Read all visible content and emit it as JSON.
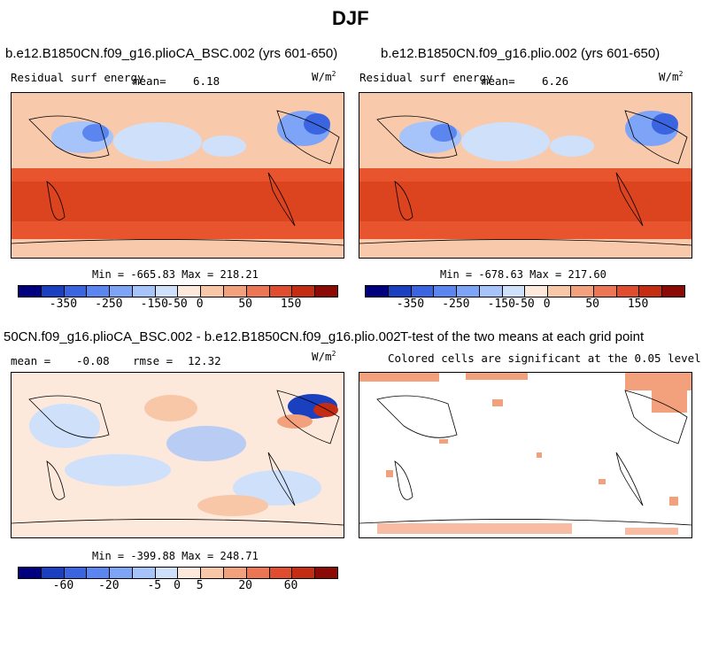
{
  "main_title": "DJF",
  "panels": [
    {
      "title": "b.e12.B1850CN.f09_g16.plioCA_BSC.002 (yrs 601-650)",
      "left_label": "Residual surf energy",
      "stat_label": "mean=",
      "stat_value": "6.18",
      "units": "W/m",
      "units_exp": "2",
      "minmax": "Min = -665.83 Max = 218.21"
    },
    {
      "title": "b.e12.B1850CN.f09_g16.plio.002 (yrs 601-650)",
      "left_label": "Residual surf energy",
      "stat_label": "mean=",
      "stat_value": "6.26",
      "units": "W/m",
      "units_exp": "2",
      "minmax": "Min = -678.63 Max = 217.60"
    },
    {
      "title": "50CN.f09_g16.plioCA_BSC.002 - b.e12.B1850CN.f09_g16.plio.002",
      "stat_label": "mean =",
      "stat_value": "-0.08",
      "rmse_label": "rmse =",
      "rmse_value": "12.32",
      "units": "W/m",
      "units_exp": "2",
      "minmax": "Min = -399.88 Max = 248.71"
    },
    {
      "title": "T-test of the two means at each grid point",
      "subtitle": "Colored cells are significant at the 0.05 level"
    }
  ],
  "chart_data": [
    {
      "type": "heatmap",
      "title": "b.e12.B1850CN.f09_g16.plioCA_BSC.002 (yrs 601-650)",
      "variable": "Residual surf energy",
      "units": "W/m2",
      "mean": 6.18,
      "min": -665.83,
      "max": 218.21,
      "colorbar_ticks": [
        "-350",
        "-250",
        "-150",
        "-50",
        "0",
        "50",
        "150"
      ]
    },
    {
      "type": "heatmap",
      "title": "b.e12.B1850CN.f09_g16.plio.002 (yrs 601-650)",
      "variable": "Residual surf energy",
      "units": "W/m2",
      "mean": 6.26,
      "min": -678.63,
      "max": 217.6,
      "colorbar_ticks": [
        "-350",
        "-250",
        "-150",
        "-50",
        "0",
        "50",
        "150"
      ]
    },
    {
      "type": "heatmap",
      "title": "50CN.f09_g16.plioCA_BSC.002 - b.e12.B1850CN.f09_g16.plio.002",
      "units": "W/m2",
      "mean": -0.08,
      "rmse": 12.32,
      "min": -399.88,
      "max": 248.71,
      "colorbar_ticks": [
        "-60",
        "-20",
        "-5",
        "0",
        "5",
        "20",
        "60"
      ]
    },
    {
      "type": "heatmap",
      "title": "T-test of the two means at each grid point",
      "note": "Colored cells are significant at the 0.05 level"
    }
  ],
  "colorbar_top": {
    "ticks": [
      "-350",
      "-250",
      "-150",
      "-50",
      "0",
      "50",
      "150"
    ],
    "colors": [
      "#00007f",
      "#1a3fbf",
      "#3a64e0",
      "#5b86f0",
      "#7ea4f7",
      "#a6c4fa",
      "#cfe0fb",
      "#fde9dc",
      "#f8c7a8",
      "#f3a07c",
      "#ec7654",
      "#df4d2e",
      "#c52d13",
      "#8b0a05"
    ]
  },
  "colorbar_bottom": {
    "ticks": [
      "-60",
      "-20",
      "-5",
      "0",
      "5",
      "20",
      "60"
    ],
    "colors": [
      "#00007f",
      "#1a3fbf",
      "#3a64e0",
      "#5b86f0",
      "#7ea4f7",
      "#a6c4fa",
      "#cfe0fb",
      "#fde9dc",
      "#f8c7a8",
      "#f3a07c",
      "#ec7654",
      "#df4d2e",
      "#c52d13",
      "#8b0a05"
    ]
  }
}
